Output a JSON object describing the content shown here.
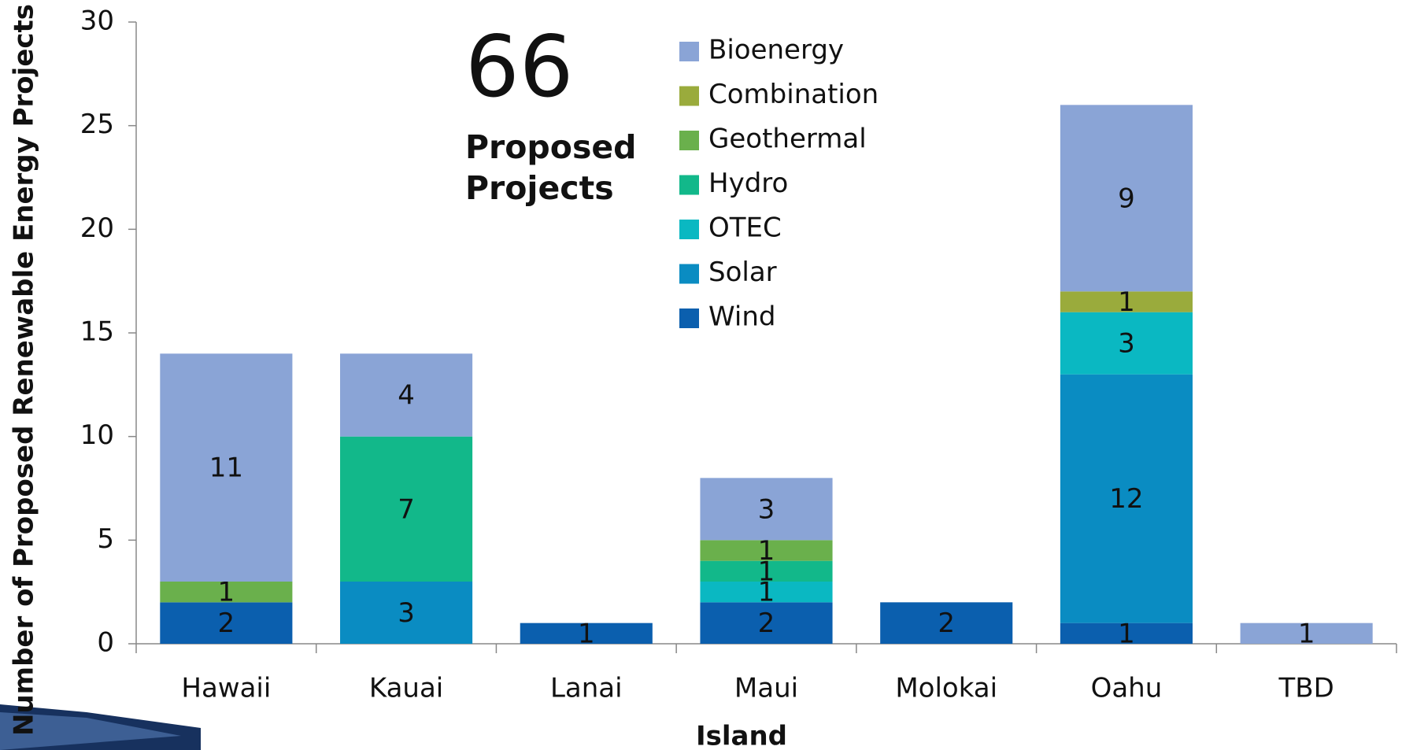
{
  "chart_data": {
    "type": "stacked_bar",
    "annotation": {
      "number": "66",
      "text": [
        "Proposed",
        "Projects"
      ]
    },
    "x_label": "Island",
    "y_label": "Number of Proposed Renewable Energy Projects",
    "categories": [
      "Hawaii",
      "Kauai",
      "Lanai",
      "Maui",
      "Molokai",
      "Oahu",
      "TBD"
    ],
    "series": [
      {
        "name": "Wind",
        "color": "#0b5fae",
        "values": [
          2,
          null,
          1,
          2,
          2,
          1,
          null
        ]
      },
      {
        "name": "Solar",
        "color": "#0a8cc2",
        "values": [
          null,
          3,
          null,
          null,
          null,
          12,
          null
        ]
      },
      {
        "name": "OTEC",
        "color": "#0ab8c2",
        "values": [
          null,
          null,
          null,
          1,
          null,
          3,
          null
        ]
      },
      {
        "name": "Hydro",
        "color": "#12b88a",
        "values": [
          null,
          7,
          null,
          1,
          null,
          null,
          null
        ]
      },
      {
        "name": "Geothermal",
        "color": "#6ab04c",
        "values": [
          1,
          null,
          null,
          1,
          null,
          null,
          null
        ]
      },
      {
        "name": "Combination",
        "color": "#9aab3c",
        "values": [
          null,
          null,
          null,
          null,
          null,
          1,
          null
        ]
      },
      {
        "name": "Bioenergy",
        "color": "#8aa4d6",
        "values": [
          11,
          4,
          null,
          3,
          null,
          9,
          1
        ]
      }
    ],
    "legend_order": "reverse",
    "ylim": [
      0,
      30
    ],
    "yticks": [
      0,
      5,
      10,
      15,
      20,
      25,
      30
    ]
  }
}
